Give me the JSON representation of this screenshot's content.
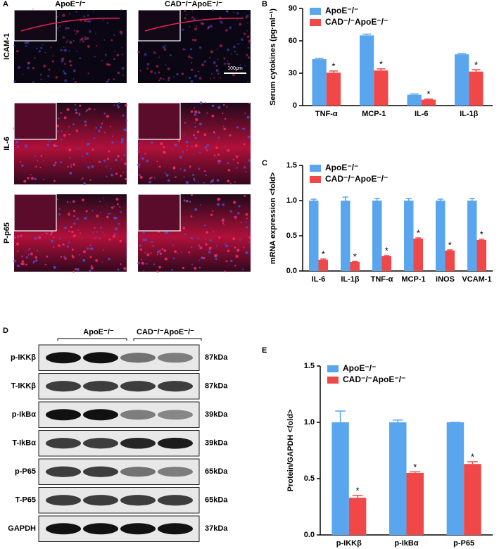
{
  "panel_labels": [
    "A",
    "B",
    "C",
    "D",
    "E"
  ],
  "image_panel": {
    "columns": [
      "ApoE⁻/⁻",
      "CAD⁻/⁻ApoE⁻/⁻"
    ],
    "rows": [
      "ICAM-1",
      "IL-6",
      "P-p65"
    ],
    "scale_bar": "100μm"
  },
  "blot": {
    "groups": [
      "ApoE⁻/⁻",
      "CAD⁻/⁻ApoE⁻/⁻"
    ],
    "rows": [
      {
        "label": "p-IKKβ",
        "size": "87kDa"
      },
      {
        "label": "T-IKKβ",
        "size": "87kDa"
      },
      {
        "label": "p-IkBα",
        "size": "39kDa"
      },
      {
        "label": "T-IkBα",
        "size": "39kDa"
      },
      {
        "label": "p-P65",
        "size": "65kDa"
      },
      {
        "label": "T-P65",
        "size": "65kDa"
      },
      {
        "label": "GAPDH",
        "size": "37kDa"
      }
    ]
  },
  "chart_data": [
    {
      "type": "bar",
      "y_label": "Serum cytokines (pg·ml⁻¹)",
      "categories": [
        "TNF-α",
        "MCP-1",
        "IL-6",
        "IL-1β"
      ],
      "series": [
        {
          "name": "ApoE⁻/⁻",
          "color": "#5aa6ee",
          "values": [
            43,
            65,
            10,
            47.5
          ],
          "errors": [
            0.8,
            1.2,
            0.8,
            0.6
          ]
        },
        {
          "name": "CAD⁻/⁻ApoE⁻/⁻",
          "color": "#f04848",
          "values": [
            30.5,
            32.5,
            5.5,
            31.5
          ],
          "errors": [
            1.5,
            1.5,
            0.5,
            1.8
          ],
          "annotations": [
            "*",
            "*",
            "*",
            "*"
          ]
        }
      ],
      "ylim": [
        0,
        90
      ],
      "yticks": [
        0,
        30,
        60,
        90
      ],
      "legend": "top-left"
    },
    {
      "type": "bar",
      "y_label": "mRNA expression <fold>",
      "categories": [
        "IL-6",
        "IL-1β",
        "TNF-α",
        "MCP-1",
        "iNOS",
        "VCAM-1"
      ],
      "series": [
        {
          "name": "ApoE⁻/⁻",
          "color": "#5aa6ee",
          "values": [
            1.0,
            1.0,
            1.0,
            1.0,
            1.0,
            1.0
          ],
          "errors": [
            0.02,
            0.05,
            0.03,
            0.03,
            0.02,
            0.03
          ]
        },
        {
          "name": "CAD⁻/⁻ApoE⁻/⁻",
          "color": "#f04848",
          "values": [
            0.16,
            0.13,
            0.21,
            0.46,
            0.29,
            0.44
          ],
          "errors": [
            0.01,
            0.005,
            0.01,
            0.01,
            0.01,
            0.01
          ],
          "annotations": [
            "*",
            "*",
            "*",
            "*",
            "*",
            "*"
          ]
        }
      ],
      "ylim": [
        0,
        1.5
      ],
      "yticks": [
        {
          "value": 0,
          "label": "0.0"
        },
        0.5,
        {
          "value": 1,
          "label": "1.0"
        },
        1.5
      ],
      "legend": "top-left"
    },
    {
      "type": "bar",
      "y_label": "Protein/GAPDH <fold>",
      "categories": [
        "p-IKKβ",
        "p-IkBα",
        "p-P65"
      ],
      "series": [
        {
          "name": "ApoE⁻/⁻",
          "color": "#5aa6ee",
          "values": [
            1.0,
            1.0,
            1.0
          ],
          "errors": [
            0.1,
            0.02,
            0.0
          ]
        },
        {
          "name": "CAD⁻/⁻ApoE⁻/⁻",
          "color": "#f04848",
          "values": [
            0.33,
            0.55,
            0.63
          ],
          "errors": [
            0.02,
            0.01,
            0.02
          ],
          "annotations": [
            "*",
            "*",
            "*"
          ]
        }
      ],
      "ylim": [
        0,
        1.5
      ],
      "yticks": [
        {
          "value": 0,
          "label": "0.0"
        },
        0.5,
        {
          "value": 1,
          "label": "1.0"
        },
        1.5
      ],
      "legend": "top-left"
    }
  ]
}
